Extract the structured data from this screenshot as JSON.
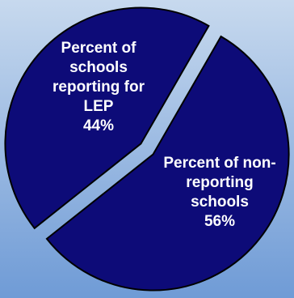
{
  "chart_data": {
    "type": "pie",
    "categories": [
      "Percent of schools reporting for LEP",
      "Percent of non-reporting schools"
    ],
    "values": [
      44,
      56
    ],
    "value_labels": [
      "44%",
      "56%"
    ],
    "label_lines": [
      "Percent of\nschools\nreporting for\nLEP\n44%",
      "Percent of non-\nreporting\nschools\n56%"
    ],
    "exploded": true,
    "title": "",
    "legend": "none"
  },
  "colors": {
    "background_top": "#c7d9ee",
    "background_bottom": "#6f9bd6",
    "slice_fill": "#0d0b78",
    "slice_stroke": "#000000",
    "label_text": "#ffffff"
  }
}
